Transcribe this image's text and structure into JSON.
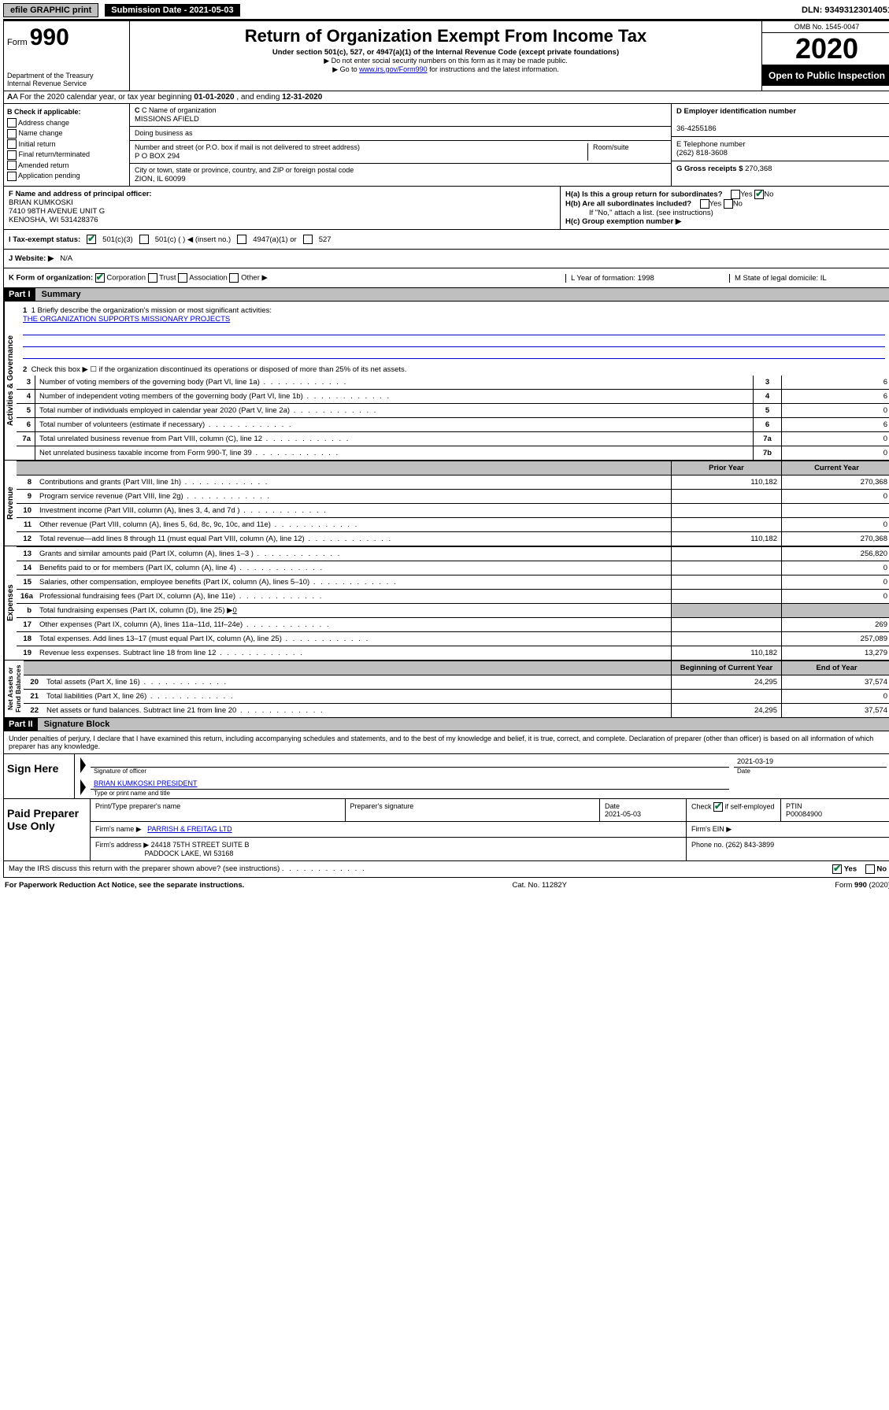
{
  "top": {
    "efile": "efile GRAPHIC print",
    "sub_date_label": "Submission Date - 2021-05-03",
    "dln": "DLN: 93493123014051"
  },
  "header": {
    "form_prefix": "Form",
    "form_number": "990",
    "dept": "Department of the Treasury\nInternal Revenue Service",
    "title": "Return of Organization Exempt From Income Tax",
    "sub": "Under section 501(c), 527, or 4947(a)(1) of the Internal Revenue Code (except private foundations)",
    "note1": "▶ Do not enter social security numbers on this form as it may be made public.",
    "note2_pre": "▶ Go to ",
    "note2_link": "www.irs.gov/Form990",
    "note2_post": " for instructions and the latest information.",
    "omb": "OMB No. 1545-0047",
    "year": "2020",
    "open": "Open to Public Inspection"
  },
  "row_a": {
    "text_pre": "A  For the 2020 calendar year, or tax year beginning ",
    "begin": "01-01-2020",
    "mid": "   , and ending ",
    "end": "12-31-2020"
  },
  "col_b": {
    "title": "B Check if applicable:",
    "items": [
      "Address change",
      "Name change",
      "Initial return",
      "Final return/terminated",
      "Amended return",
      "Application pending"
    ]
  },
  "col_c": {
    "name_label": "C Name of organization",
    "name": "MISSIONS AFIELD",
    "dba_label": "Doing business as",
    "addr_label": "Number and street (or P.O. box if mail is not delivered to street address)",
    "addr": "P O BOX 294",
    "room_label": "Room/suite",
    "city_label": "City or town, state or province, country, and ZIP or foreign postal code",
    "city": "ZION, IL  60099"
  },
  "col_de": {
    "d_label": "D Employer identification number",
    "d_val": "36-4255186",
    "e_label": "E Telephone number",
    "e_val": "(262) 818-3608",
    "g_label": "G Gross receipts $ ",
    "g_val": "270,368"
  },
  "f": {
    "label": "F  Name and address of principal officer:",
    "name": "BRIAN KUMKOSKI",
    "addr1": "7410 98TH AVENUE UNIT G",
    "addr2": "KENOSHA, WI  531428376"
  },
  "h": {
    "a": "H(a)  Is this a group return for subordinates?",
    "b": "H(b)  Are all subordinates included?",
    "b_note": "If \"No,\" attach a list. (see instructions)",
    "c": "H(c)  Group exemption number ▶"
  },
  "i": {
    "label": "I    Tax-exempt status:",
    "c3": "501(c)(3)",
    "c": "501(c) (  ) ◀ (insert no.)",
    "a1": "4947(a)(1) or",
    "527": "527"
  },
  "j": {
    "label": "J   Website: ▶",
    "val": "N/A"
  },
  "k": {
    "label": "K Form of organization:",
    "opts": [
      "Corporation",
      "Trust",
      "Association",
      "Other ▶"
    ],
    "l": "L Year of formation: 1998",
    "m": "M State of legal domicile: IL"
  },
  "part1": {
    "part": "Part I",
    "title": "Summary",
    "q1_label": "1  Briefly describe the organization's mission or most significant activities:",
    "q1_val": "THE ORGANIZATION SUPPORTS MISSIONARY PROJECTS",
    "q2": "Check this box ▶ ☐  if the organization discontinued its operations or disposed of more than 25% of its net assets.",
    "lines_gov": [
      {
        "n": "3",
        "t": "Number of voting members of the governing body (Part VI, line 1a)",
        "box": "3",
        "v": "6"
      },
      {
        "n": "4",
        "t": "Number of independent voting members of the governing body (Part VI, line 1b)",
        "box": "4",
        "v": "6"
      },
      {
        "n": "5",
        "t": "Total number of individuals employed in calendar year 2020 (Part V, line 2a)",
        "box": "5",
        "v": "0"
      },
      {
        "n": "6",
        "t": "Total number of volunteers (estimate if necessary)",
        "box": "6",
        "v": "6"
      },
      {
        "n": "7a",
        "t": "Total unrelated business revenue from Part VIII, column (C), line 12",
        "box": "7a",
        "v": "0"
      },
      {
        "n": "",
        "t": "Net unrelated business taxable income from Form 990-T, line 39",
        "box": "7b",
        "v": "0"
      }
    ],
    "cols": {
      "prior": "Prior Year",
      "current": "Current Year"
    },
    "revenue": [
      {
        "n": "8",
        "t": "Contributions and grants (Part VIII, line 1h)",
        "v1": "110,182",
        "v2": "270,368"
      },
      {
        "n": "9",
        "t": "Program service revenue (Part VIII, line 2g)",
        "v1": "",
        "v2": "0"
      },
      {
        "n": "10",
        "t": "Investment income (Part VIII, column (A), lines 3, 4, and 7d )",
        "v1": "",
        "v2": ""
      },
      {
        "n": "11",
        "t": "Other revenue (Part VIII, column (A), lines 5, 6d, 8c, 9c, 10c, and 11e)",
        "v1": "",
        "v2": "0"
      },
      {
        "n": "12",
        "t": "Total revenue—add lines 8 through 11 (must equal Part VIII, column (A), line 12)",
        "v1": "110,182",
        "v2": "270,368"
      }
    ],
    "expenses": [
      {
        "n": "13",
        "t": "Grants and similar amounts paid (Part IX, column (A), lines 1–3 )",
        "v1": "",
        "v2": "256,820"
      },
      {
        "n": "14",
        "t": "Benefits paid to or for members (Part IX, column (A), line 4)",
        "v1": "",
        "v2": "0"
      },
      {
        "n": "15",
        "t": "Salaries, other compensation, employee benefits (Part IX, column (A), lines 5–10)",
        "v1": "",
        "v2": "0"
      },
      {
        "n": "16a",
        "t": "Professional fundraising fees (Part IX, column (A), line 11e)",
        "v1": "",
        "v2": "0"
      },
      {
        "n": "b",
        "t": "Total fundraising expenses (Part IX, column (D), line 25) ▶",
        "v1": "GREY",
        "v2": "GREY",
        "sub": "0"
      },
      {
        "n": "17",
        "t": "Other expenses (Part IX, column (A), lines 11a–11d, 11f–24e)",
        "v1": "",
        "v2": "269"
      },
      {
        "n": "18",
        "t": "Total expenses. Add lines 13–17 (must equal Part IX, column (A), line 25)",
        "v1": "",
        "v2": "257,089"
      },
      {
        "n": "19",
        "t": "Revenue less expenses. Subtract line 18 from line 12",
        "v1": "110,182",
        "v2": "13,279"
      }
    ],
    "cols2": {
      "begin": "Beginning of Current Year",
      "end": "End of Year"
    },
    "netassets": [
      {
        "n": "20",
        "t": "Total assets (Part X, line 16)",
        "v1": "24,295",
        "v2": "37,574"
      },
      {
        "n": "21",
        "t": "Total liabilities (Part X, line 26)",
        "v1": "",
        "v2": "0"
      },
      {
        "n": "22",
        "t": "Net assets or fund balances. Subtract line 21 from line 20",
        "v1": "24,295",
        "v2": "37,574"
      }
    ]
  },
  "part2": {
    "part": "Part II",
    "title": "Signature Block",
    "declaration": "Under penalties of perjury, I declare that I have examined this return, including accompanying schedules and statements, and to the best of my knowledge and belief, it is true, correct, and complete. Declaration of preparer (other than officer) is based on all information of which preparer has any knowledge.",
    "sign_here": "Sign Here",
    "sig_label": "Signature of officer",
    "date_label": "Date",
    "date_val": "2021-03-19",
    "name_val": "BRIAN KUMKOSKI  PRESIDENT",
    "name_label": "Type or print name and title",
    "paid": "Paid Preparer Use Only",
    "p_name_label": "Print/Type preparer's name",
    "p_sig_label": "Preparer's signature",
    "p_date_label": "Date",
    "p_date_val": "2021-05-03",
    "p_check": "Check ☑ if self-employed",
    "ptin_label": "PTIN",
    "ptin_val": "P00084900",
    "firm_name_label": "Firm's name    ▶",
    "firm_name": "PARRISH & FREITAG LTD",
    "firm_ein_label": "Firm's EIN ▶",
    "firm_addr_label": "Firm's address ▶",
    "firm_addr": "24418 75TH STREET SUITE B",
    "firm_addr2": "PADDOCK LAKE, WI  53168",
    "phone_label": "Phone no. ",
    "phone_val": "(262) 843-3899",
    "discuss": "May the IRS discuss this return with the preparer shown above? (see instructions)",
    "yes": "Yes",
    "no": "No"
  },
  "footer": {
    "paperwork": "For Paperwork Reduction Act Notice, see the separate instructions.",
    "cat": "Cat. No. 11282Y",
    "form": "Form 990 (2020)"
  }
}
